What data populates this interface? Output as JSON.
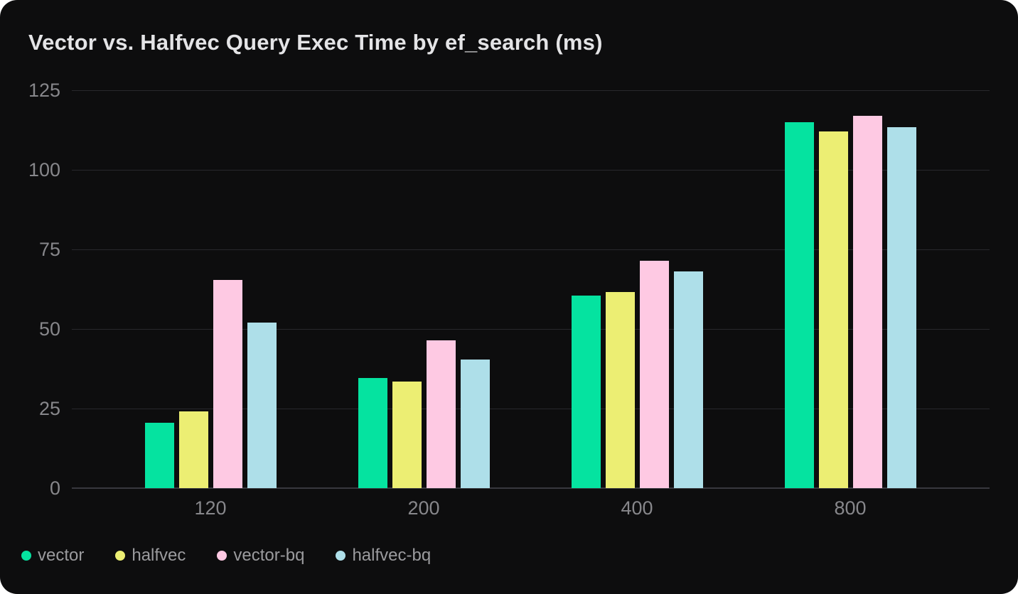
{
  "chart_data": {
    "type": "bar",
    "title": "Vector vs. Halfvec Query Exec Time by ef_search (ms)",
    "categories": [
      "120",
      "200",
      "400",
      "800"
    ],
    "series": [
      {
        "name": "vector",
        "color": "#05e3a0",
        "values": [
          20.5,
          34.5,
          60.5,
          115
        ]
      },
      {
        "name": "halfvec",
        "color": "#ecee73",
        "values": [
          24,
          33.5,
          61.5,
          112
        ]
      },
      {
        "name": "vector-bq",
        "color": "#fec9e3",
        "values": [
          65.5,
          46.5,
          71.5,
          117
        ]
      },
      {
        "name": "halfvec-bq",
        "color": "#aedfe9",
        "values": [
          52,
          40.5,
          68,
          113.5
        ]
      }
    ],
    "ylim": [
      0,
      125
    ],
    "yticks": [
      0,
      25,
      50,
      75,
      100,
      125
    ],
    "grid": true,
    "legend_position": "bottom-left",
    "xlabel": "",
    "ylabel": ""
  },
  "colors": {
    "page_background": "#ffffff",
    "card_background": "#0d0d0e",
    "title_text": "#e4e4e6",
    "tick_text": "#87878b",
    "legend_text": "#9b9b9e",
    "gridline": "#28282c",
    "baseline": "#38383e"
  }
}
